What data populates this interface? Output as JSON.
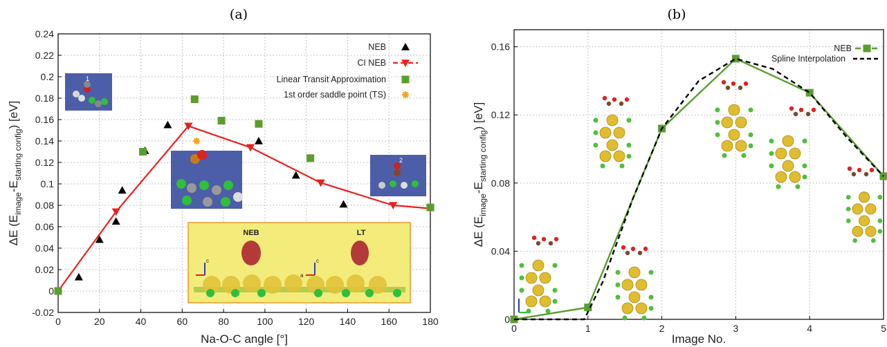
{
  "panels": {
    "a": {
      "label": "(a)"
    },
    "b": {
      "label": "(b)"
    }
  },
  "chart_data": [
    {
      "type": "scatter",
      "panel": "(a)",
      "xlabel": "Na-O-C angle [°]",
      "ylabel": "ΔE (E_image - E_starting config) [eV]",
      "ylabel_parts": {
        "prefix": "ΔE (E",
        "sub1": "image",
        "mid": "-E",
        "sub2": "starting config",
        "suffix": ") [eV]"
      },
      "xlim": [
        0,
        180
      ],
      "ylim": [
        -0.02,
        0.24
      ],
      "xticks": [
        "0",
        "20",
        "40",
        "60",
        "80",
        "100",
        "120",
        "140",
        "160",
        "180"
      ],
      "yticks": [
        "-0.02",
        "0",
        "0.02",
        "0.04",
        "0.06",
        "0.08",
        "0.1",
        "0.12",
        "0.14",
        "0.16",
        "0.18",
        "0.2",
        "0.22",
        "0.24"
      ],
      "grid": true,
      "legend_position": "top-right",
      "series": [
        {
          "name": "NEB",
          "marker": "triangle-up",
          "color": "#000000",
          "x": [
            10,
            20,
            28,
            31,
            42,
            53,
            97,
            115,
            138
          ],
          "y": [
            0.013,
            0.048,
            0.065,
            0.094,
            0.131,
            0.155,
            0.14,
            0.108,
            0.081
          ]
        },
        {
          "name": "CI NEB",
          "marker": "triangle-down",
          "color": "#e8211e",
          "line": true,
          "x": [
            0,
            28,
            63,
            93,
            127,
            162,
            180
          ],
          "y": [
            0.0,
            0.074,
            0.154,
            0.134,
            0.101,
            0.08,
            0.077
          ]
        },
        {
          "name": "Linear Transit Approximation",
          "marker": "square",
          "color": "#5a9e2e",
          "x": [
            0,
            41,
            66,
            79,
            97,
            122,
            180
          ],
          "y": [
            0.0,
            0.13,
            0.179,
            0.159,
            0.156,
            0.124,
            0.078
          ]
        },
        {
          "name": "1st order saddle point (TS)",
          "marker": "asterisk",
          "color": "#f5a31f",
          "x": [
            67
          ],
          "y": [
            0.14
          ]
        }
      ],
      "insets": {
        "structure_1_label": "1",
        "structure_2_label": "2",
        "neb_label": "NEB",
        "lt_label": "LT",
        "axis_c": "c",
        "axis_a": "a"
      }
    },
    {
      "type": "line",
      "panel": "(b)",
      "xlabel": "Image No.",
      "ylabel": "ΔE (E_image - E_starting config) [eV]",
      "ylabel_parts": {
        "prefix": "ΔE (E",
        "sub1": "image",
        "mid": "-E",
        "sub2": "starting config",
        "suffix": ") [eV]"
      },
      "xlim": [
        0,
        5
      ],
      "ylim": [
        0,
        0.17
      ],
      "xticks": [
        "0",
        "1",
        "2",
        "3",
        "4",
        "5"
      ],
      "yticks": [
        "0",
        "0.04",
        "0.08",
        "0.12",
        "0.16"
      ],
      "grid": true,
      "legend_position": "top-right",
      "series": [
        {
          "name": "NEB",
          "marker": "square",
          "color": "#5a9e2e",
          "line": true,
          "x": [
            0,
            1,
            2,
            3,
            4,
            5
          ],
          "y": [
            0.0,
            0.007,
            0.112,
            0.153,
            0.133,
            0.084
          ]
        },
        {
          "name": "Spline Interpolation",
          "color": "#000000",
          "dashed": true,
          "x": [
            0,
            0.95,
            1.2,
            1.6,
            2.0,
            2.5,
            3.0,
            3.5,
            4.0,
            4.5,
            5.0
          ],
          "y": [
            0.0,
            0.0,
            0.022,
            0.07,
            0.112,
            0.14,
            0.153,
            0.147,
            0.133,
            0.107,
            0.084
          ]
        }
      ]
    }
  ]
}
